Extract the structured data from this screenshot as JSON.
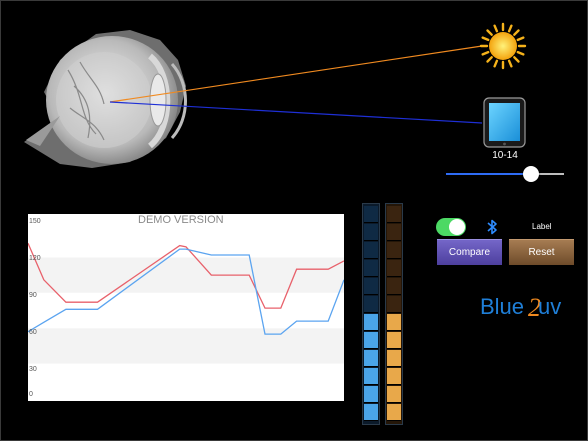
{
  "scene": {
    "eye_icon": "eye-cross-section",
    "sun_icon": "sun",
    "device_icon": "tablet",
    "ray_colors": {
      "sun": "#f08a20",
      "device": "#1e2fd6"
    }
  },
  "age_range": {
    "label": "10-14",
    "value_fraction": 0.72
  },
  "chart": {
    "watermark": "DEMO VERSION",
    "y_ticks": [
      "150",
      "120",
      "90",
      "60",
      "30",
      "0"
    ]
  },
  "chart_data": {
    "type": "line",
    "ylim": [
      0,
      150
    ],
    "xlim": [
      0,
      100
    ],
    "y_ticks": [
      0,
      30,
      60,
      90,
      120,
      150
    ],
    "grid": "alternating horizontal bands",
    "series": [
      {
        "color": "#e8616b",
        "x": [
          0,
          5,
          12,
          17,
          22,
          48,
          50,
          58,
          62,
          65,
          70,
          75,
          77,
          80,
          85,
          95,
          100
        ],
        "y": [
          132,
          101,
          82,
          82,
          82,
          130,
          129,
          105,
          105,
          105,
          105,
          77,
          77,
          77,
          110,
          110,
          117
        ]
      },
      {
        "color": "#5ba4f0",
        "x": [
          0,
          5,
          12,
          17,
          22,
          48,
          50,
          58,
          62,
          65,
          70,
          75,
          77,
          80,
          85,
          95,
          100
        ],
        "y": [
          57,
          65,
          76,
          76,
          76,
          127,
          127,
          122,
          122,
          122,
          122,
          55,
          55,
          55,
          66,
          66,
          101
        ]
      }
    ]
  },
  "meters": {
    "left": {
      "total": 12,
      "filled": 6,
      "on_color": "#4aa4e8",
      "off_color": "#0f2a44"
    },
    "right": {
      "total": 12,
      "filled": 6,
      "on_color": "#e8a84a",
      "off_color": "#3a2410"
    }
  },
  "controls": {
    "toggle_on": true,
    "toggle_icon": "toggle-switch",
    "bluetooth_icon": "bluetooth",
    "label": "Label",
    "compare": "Compare",
    "reset": "Reset"
  },
  "logo": {
    "text_a": "Blue",
    "text_b": "uv",
    "mark": "2"
  }
}
